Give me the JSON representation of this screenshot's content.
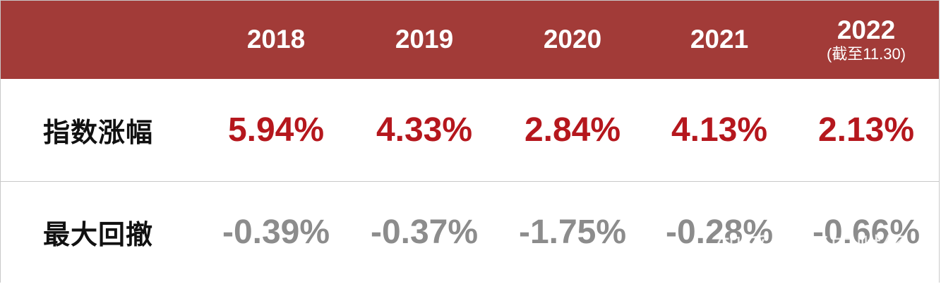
{
  "chart_data": {
    "type": "table",
    "columns": [
      "2018",
      "2019",
      "2020",
      "2021",
      "2022"
    ],
    "column_notes": [
      "",
      "",
      "",
      "",
      "(截至11.30)"
    ],
    "rows": [
      {
        "label": "指数涨幅",
        "values": [
          "5.94%",
          "4.33%",
          "2.84%",
          "4.13%",
          "2.13%"
        ],
        "color": "#b5171d"
      },
      {
        "label": "最大回撤",
        "values": [
          "-0.39%",
          "-0.37%",
          "-1.75%",
          "-0.28%",
          "-0.66%"
        ],
        "color": "#8c8c8c"
      }
    ]
  },
  "colors": {
    "header_bg": "#a23b38",
    "header_text": "#ffffff",
    "gain_text": "#b5171d",
    "drawdown_text": "#8c8c8c",
    "label_text": "#111111"
  },
  "watermark": "知乎 @开申财经"
}
